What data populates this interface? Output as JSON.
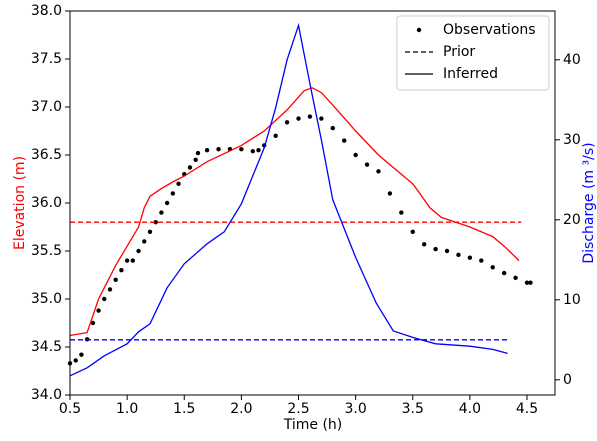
{
  "chart_data": {
    "type": "line",
    "xlabel": "Time (h)",
    "ylabel": "Elevation (m)",
    "y2label": "Discharge (m ³/s)",
    "ylabel_color": "#ff0000",
    "y2label_color": "#0000ff",
    "xlim": [
      0.5,
      4.745
    ],
    "ylim": [
      34.0,
      38.0
    ],
    "y2lim": [
      -1.9,
      46.1
    ],
    "xticks": [
      {
        "value": 0.5,
        "label": "0.5"
      },
      {
        "value": 1.0,
        "label": "1.0"
      },
      {
        "value": 1.5,
        "label": "1.5"
      },
      {
        "value": 2.0,
        "label": "2.0"
      },
      {
        "value": 2.5,
        "label": "2.5"
      },
      {
        "value": 3.0,
        "label": "3.0"
      },
      {
        "value": 3.5,
        "label": "3.5"
      },
      {
        "value": 4.0,
        "label": "4.0"
      },
      {
        "value": 4.5,
        "label": "4.5"
      }
    ],
    "yticks": [
      {
        "value": 34.0,
        "label": "34.0"
      },
      {
        "value": 34.5,
        "label": "34.5"
      },
      {
        "value": 35.0,
        "label": "35.0"
      },
      {
        "value": 35.5,
        "label": "35.5"
      },
      {
        "value": 36.0,
        "label": "36.0"
      },
      {
        "value": 36.5,
        "label": "36.5"
      },
      {
        "value": 37.0,
        "label": "37.0"
      },
      {
        "value": 37.5,
        "label": "37.5"
      },
      {
        "value": 38.0,
        "label": "38.0"
      }
    ],
    "y2ticks": [
      0,
      10,
      20,
      30,
      40
    ],
    "legend_position": "upper right",
    "legend": [
      {
        "name": "Observations",
        "style": "dots"
      },
      {
        "name": "Prior",
        "style": "dashed"
      },
      {
        "name": "Inferred",
        "style": "solid"
      }
    ],
    "series": [
      {
        "color": "#000000",
        "style": "dots",
        "axis": "y",
        "x": [
          0.5,
          0.55,
          0.6,
          0.65,
          0.7,
          0.75,
          0.8,
          0.85,
          0.9,
          0.95,
          1.0,
          1.05,
          1.1,
          1.15,
          1.2,
          1.25,
          1.3,
          1.35,
          1.4,
          1.45,
          1.5,
          1.55,
          1.6,
          1.62,
          1.7,
          1.8,
          1.9,
          2.0,
          2.1,
          2.15,
          2.2,
          2.3,
          2.4,
          2.5,
          2.6,
          2.7,
          2.8,
          2.9,
          3.0,
          3.1,
          3.2,
          3.3,
          3.4,
          3.5,
          3.6,
          3.7,
          3.8,
          3.9,
          4.0,
          4.1,
          4.2,
          4.3,
          4.4,
          4.5,
          4.53
        ],
        "values": [
          34.33,
          34.36,
          34.42,
          34.58,
          34.75,
          34.88,
          35.0,
          35.1,
          35.2,
          35.3,
          35.4,
          35.4,
          35.5,
          35.6,
          35.7,
          35.8,
          35.9,
          36.0,
          36.1,
          36.2,
          36.3,
          36.37,
          36.45,
          36.52,
          36.55,
          36.56,
          36.56,
          36.56,
          36.54,
          36.55,
          36.6,
          36.7,
          36.84,
          36.88,
          36.9,
          36.88,
          36.78,
          36.65,
          36.5,
          36.4,
          36.33,
          36.1,
          35.9,
          35.7,
          35.57,
          35.52,
          35.5,
          35.46,
          35.43,
          35.4,
          35.33,
          35.27,
          35.22,
          35.17,
          35.17
        ]
      },
      {
        "color": "#ff0000",
        "style": "dashed",
        "axis": "y",
        "x": [
          0.5,
          4.45
        ],
        "values": [
          35.8,
          35.8
        ]
      },
      {
        "color": "#0000ff",
        "style": "dashed",
        "axis": "y2",
        "x": [
          0.5,
          4.33
        ],
        "values": [
          5.0,
          5.0
        ]
      },
      {
        "color": "#ff0000",
        "style": "solid",
        "axis": "y",
        "x": [
          0.5,
          0.65,
          0.75,
          0.9,
          1.0,
          1.1,
          1.15,
          1.2,
          1.3,
          1.4,
          1.5,
          1.7,
          2.0,
          2.2,
          2.4,
          2.55,
          2.62,
          2.7,
          2.8,
          3.0,
          3.2,
          3.4,
          3.5,
          3.55,
          3.65,
          3.75,
          3.9,
          4.0,
          4.2,
          4.3,
          4.43
        ],
        "values": [
          34.62,
          34.65,
          35.0,
          35.35,
          35.55,
          35.75,
          35.95,
          36.07,
          36.15,
          36.22,
          36.28,
          36.43,
          36.6,
          36.75,
          36.97,
          37.17,
          37.2,
          37.15,
          37.02,
          36.75,
          36.5,
          36.3,
          36.2,
          36.12,
          35.95,
          35.85,
          35.79,
          35.75,
          35.65,
          35.55,
          35.4
        ]
      },
      {
        "color": "#0000ff",
        "style": "solid",
        "axis": "y2",
        "x": [
          0.5,
          0.65,
          0.8,
          1.0,
          1.1,
          1.2,
          1.35,
          1.5,
          1.7,
          1.85,
          2.0,
          2.1,
          2.2,
          2.3,
          2.4,
          2.5,
          2.6,
          2.7,
          2.8,
          3.0,
          3.18,
          3.33,
          3.5,
          3.7,
          4.0,
          4.2,
          4.33
        ],
        "values": [
          0.5,
          1.5,
          3.0,
          4.5,
          6.0,
          7.0,
          11.5,
          14.5,
          17.0,
          18.5,
          22.0,
          25.5,
          29.0,
          34.0,
          40.0,
          44.3,
          37.0,
          30.0,
          22.5,
          15.3,
          9.6,
          6.1,
          5.3,
          4.5,
          4.2,
          3.8,
          3.3
        ]
      }
    ]
  }
}
